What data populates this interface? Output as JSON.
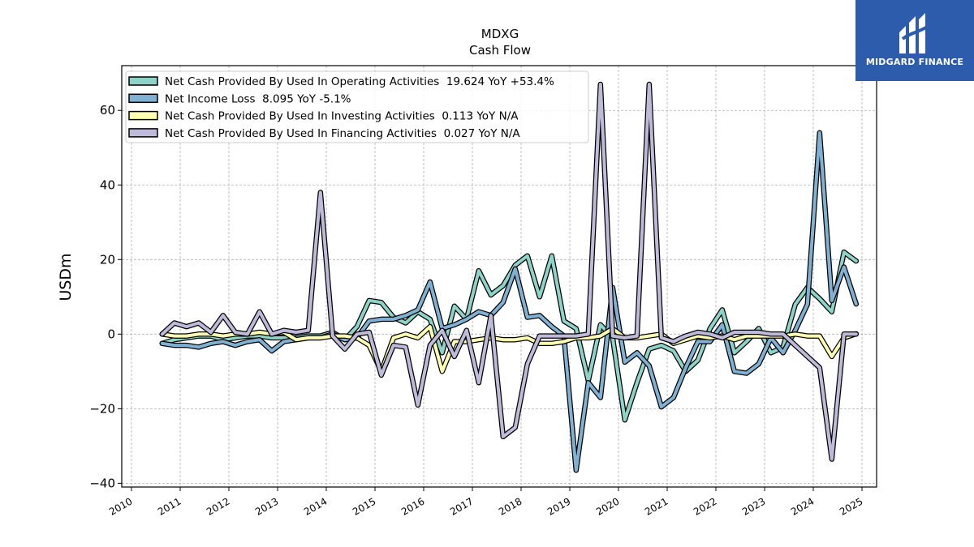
{
  "logo": {
    "text": "MIDGARD FINANCE",
    "color": "#2c5cab"
  },
  "chart_data": {
    "type": "line",
    "title": "MDXG",
    "subtitle": "Cash Flow",
    "xlabel": "",
    "ylabel": "USDm",
    "xlim": [
      2009.8,
      2025.3
    ],
    "ylim": [
      -41,
      72
    ],
    "x_ticks": [
      2010,
      2011,
      2012,
      2013,
      2014,
      2015,
      2016,
      2017,
      2018,
      2019,
      2020,
      2021,
      2022,
      2023,
      2024,
      2025
    ],
    "y_ticks": [
      -40,
      -20,
      0,
      20,
      40,
      60
    ],
    "y_tick_labels": [
      "−40",
      "−20",
      "0",
      "20",
      "40",
      "60"
    ],
    "grid": true,
    "legend_position": "top-left",
    "series": [
      {
        "name": "Net Cash Provided By Used In Operating Activities  19.624 YoY +53.4%",
        "color": "#8dd3c7",
        "points": [
          [
            2010.63,
            -2.5
          ],
          [
            2010.88,
            -1.5
          ],
          [
            2011.13,
            -1
          ],
          [
            2011.38,
            -0.5
          ],
          [
            2011.63,
            -0.5
          ],
          [
            2011.88,
            -1.5
          ],
          [
            2012.13,
            -1
          ],
          [
            2012.38,
            -0.5
          ],
          [
            2012.63,
            -0.5
          ],
          [
            2012.88,
            -1
          ],
          [
            2013.13,
            -1
          ],
          [
            2013.38,
            -1
          ],
          [
            2013.63,
            -0.5
          ],
          [
            2013.88,
            -0.5
          ],
          [
            2014.13,
            0.5
          ],
          [
            2014.38,
            -1.5
          ],
          [
            2014.63,
            2
          ],
          [
            2014.88,
            9
          ],
          [
            2015.13,
            8.5
          ],
          [
            2015.38,
            4.5
          ],
          [
            2015.63,
            3
          ],
          [
            2015.88,
            6
          ],
          [
            2016.13,
            4
          ],
          [
            2016.38,
            -5
          ],
          [
            2016.63,
            7.5
          ],
          [
            2016.88,
            4
          ],
          [
            2017.13,
            17
          ],
          [
            2017.38,
            10.5
          ],
          [
            2017.63,
            13
          ],
          [
            2017.88,
            18.5
          ],
          [
            2018.13,
            21
          ],
          [
            2018.38,
            10
          ],
          [
            2018.63,
            21
          ],
          [
            2018.88,
            3.5
          ],
          [
            2019.13,
            1.5
          ],
          [
            2019.38,
            -12.5
          ],
          [
            2019.63,
            2.5
          ],
          [
            2019.88,
            -1
          ],
          [
            2020.13,
            -23
          ],
          [
            2020.38,
            -13
          ],
          [
            2020.63,
            -4
          ],
          [
            2020.88,
            -3
          ],
          [
            2021.13,
            -4.5
          ],
          [
            2021.38,
            -10
          ],
          [
            2021.63,
            -7
          ],
          [
            2021.88,
            1.5
          ],
          [
            2022.13,
            6.5
          ],
          [
            2022.38,
            -5
          ],
          [
            2022.63,
            -2
          ],
          [
            2022.88,
            1.5
          ],
          [
            2023.13,
            -5
          ],
          [
            2023.38,
            -3.5
          ],
          [
            2023.63,
            8
          ],
          [
            2023.88,
            12.5
          ],
          [
            2024.13,
            9.5
          ],
          [
            2024.38,
            6
          ],
          [
            2024.63,
            22
          ],
          [
            2024.88,
            19.6
          ]
        ]
      },
      {
        "name": "Net Income Loss  8.095 YoY -5.1%",
        "color": "#80b1d3",
        "points": [
          [
            2010.63,
            -2.5
          ],
          [
            2010.88,
            -3
          ],
          [
            2011.13,
            -3
          ],
          [
            2011.38,
            -3.5
          ],
          [
            2011.63,
            -2.5
          ],
          [
            2011.88,
            -2
          ],
          [
            2012.13,
            -3
          ],
          [
            2012.38,
            -2
          ],
          [
            2012.63,
            -1.5
          ],
          [
            2012.88,
            -4.5
          ],
          [
            2013.13,
            -2
          ],
          [
            2013.38,
            -1.5
          ],
          [
            2013.63,
            -1
          ],
          [
            2013.88,
            -1
          ],
          [
            2014.13,
            0
          ],
          [
            2014.38,
            -1.5
          ],
          [
            2014.63,
            -1
          ],
          [
            2014.88,
            3.5
          ],
          [
            2015.13,
            4
          ],
          [
            2015.38,
            4
          ],
          [
            2015.63,
            5
          ],
          [
            2015.88,
            6.5
          ],
          [
            2016.13,
            14
          ],
          [
            2016.38,
            1.5
          ],
          [
            2016.63,
            2.5
          ],
          [
            2016.88,
            4
          ],
          [
            2017.13,
            6
          ],
          [
            2017.38,
            5
          ],
          [
            2017.63,
            8.5
          ],
          [
            2017.88,
            17.5
          ],
          [
            2018.13,
            4.5
          ],
          [
            2018.38,
            5
          ],
          [
            2018.63,
            2
          ],
          [
            2018.88,
            -0.5
          ],
          [
            2019.13,
            -36.5
          ],
          [
            2019.38,
            -13
          ],
          [
            2019.63,
            -17
          ],
          [
            2019.88,
            12.5
          ],
          [
            2020.13,
            -7.5
          ],
          [
            2020.38,
            -5
          ],
          [
            2020.63,
            -8.5
          ],
          [
            2020.88,
            -19.5
          ],
          [
            2021.13,
            -17
          ],
          [
            2021.38,
            -9
          ],
          [
            2021.63,
            -2
          ],
          [
            2021.88,
            -2
          ],
          [
            2022.13,
            2.5
          ],
          [
            2022.38,
            -10
          ],
          [
            2022.63,
            -10.5
          ],
          [
            2022.88,
            -8
          ],
          [
            2023.13,
            -1
          ],
          [
            2023.38,
            -5
          ],
          [
            2023.63,
            1
          ],
          [
            2023.88,
            8
          ],
          [
            2024.13,
            54
          ],
          [
            2024.38,
            9
          ],
          [
            2024.63,
            18
          ],
          [
            2024.88,
            8.1
          ]
        ]
      },
      {
        "name": "Net Cash Provided By Used In Investing Activities  0.113 YoY N/A",
        "color": "#ffffb3",
        "points": [
          [
            2010.63,
            0
          ],
          [
            2010.88,
            -0.5
          ],
          [
            2011.13,
            -0.5
          ],
          [
            2011.38,
            0
          ],
          [
            2011.63,
            0
          ],
          [
            2011.88,
            -0.5
          ],
          [
            2012.13,
            0
          ],
          [
            2012.38,
            0
          ],
          [
            2012.63,
            0.5
          ],
          [
            2012.88,
            0
          ],
          [
            2013.13,
            0.5
          ],
          [
            2013.38,
            -1.5
          ],
          [
            2013.63,
            -1
          ],
          [
            2013.88,
            -1
          ],
          [
            2014.13,
            -0.5
          ],
          [
            2014.38,
            -0.5
          ],
          [
            2014.63,
            -1
          ],
          [
            2014.88,
            -3
          ],
          [
            2015.13,
            -10
          ],
          [
            2015.38,
            -1
          ],
          [
            2015.63,
            0
          ],
          [
            2015.88,
            -1
          ],
          [
            2016.13,
            2
          ],
          [
            2016.38,
            -10
          ],
          [
            2016.63,
            -2
          ],
          [
            2016.88,
            -2
          ],
          [
            2017.13,
            -1.5
          ],
          [
            2017.38,
            -1
          ],
          [
            2017.63,
            -1.5
          ],
          [
            2017.88,
            -1.5
          ],
          [
            2018.13,
            -1
          ],
          [
            2018.38,
            -2.5
          ],
          [
            2018.63,
            -2.5
          ],
          [
            2018.88,
            -2
          ],
          [
            2019.13,
            -1
          ],
          [
            2019.38,
            -1
          ],
          [
            2019.63,
            -0.5
          ],
          [
            2019.88,
            1.5
          ],
          [
            2020.13,
            -1
          ],
          [
            2020.38,
            -1
          ],
          [
            2020.63,
            -0.5
          ],
          [
            2020.88,
            0
          ],
          [
            2021.13,
            -2.5
          ],
          [
            2021.38,
            -1.5
          ],
          [
            2021.63,
            -0.5
          ],
          [
            2021.88,
            -1
          ],
          [
            2022.13,
            -0.5
          ],
          [
            2022.38,
            -1.5
          ],
          [
            2022.63,
            -0.5
          ],
          [
            2022.88,
            -0.5
          ],
          [
            2023.13,
            -0.5
          ],
          [
            2023.38,
            -0.5
          ],
          [
            2023.63,
            0
          ],
          [
            2023.88,
            -0.5
          ],
          [
            2024.13,
            -0.5
          ],
          [
            2024.38,
            -6
          ],
          [
            2024.63,
            -1
          ],
          [
            2024.88,
            0.1
          ]
        ]
      },
      {
        "name": "Net Cash Provided By Used In Financing Activities  0.027 YoY N/A",
        "color": "#bebada",
        "points": [
          [
            2010.63,
            0
          ],
          [
            2010.88,
            3
          ],
          [
            2011.13,
            2
          ],
          [
            2011.38,
            3
          ],
          [
            2011.63,
            0.5
          ],
          [
            2011.88,
            5
          ],
          [
            2012.13,
            0.5
          ],
          [
            2012.38,
            0
          ],
          [
            2012.63,
            6
          ],
          [
            2012.88,
            0
          ],
          [
            2013.13,
            1
          ],
          [
            2013.38,
            0.5
          ],
          [
            2013.63,
            1
          ],
          [
            2013.88,
            38
          ],
          [
            2014.13,
            -0.5
          ],
          [
            2014.38,
            -4
          ],
          [
            2014.63,
            0
          ],
          [
            2014.88,
            0.5
          ],
          [
            2015.13,
            -11
          ],
          [
            2015.38,
            -3
          ],
          [
            2015.63,
            -3.5
          ],
          [
            2015.88,
            -19
          ],
          [
            2016.13,
            -3
          ],
          [
            2016.38,
            1
          ],
          [
            2016.63,
            -6
          ],
          [
            2016.88,
            1
          ],
          [
            2017.13,
            -13
          ],
          [
            2017.38,
            5
          ],
          [
            2017.63,
            -27.5
          ],
          [
            2017.88,
            -25
          ],
          [
            2018.13,
            -8
          ],
          [
            2018.38,
            -0.5
          ],
          [
            2018.63,
            -0.5
          ],
          [
            2018.88,
            -0.5
          ],
          [
            2019.13,
            -0.5
          ],
          [
            2019.38,
            0
          ],
          [
            2019.63,
            67
          ],
          [
            2019.88,
            -0.5
          ],
          [
            2020.13,
            -1
          ],
          [
            2020.38,
            -0.5
          ],
          [
            2020.63,
            67
          ],
          [
            2020.88,
            -1
          ],
          [
            2021.13,
            -2
          ],
          [
            2021.38,
            -0.5
          ],
          [
            2021.63,
            0.5
          ],
          [
            2021.88,
            0
          ],
          [
            2022.13,
            -1
          ],
          [
            2022.38,
            0.5
          ],
          [
            2022.63,
            0.5
          ],
          [
            2022.88,
            0.5
          ],
          [
            2023.13,
            0
          ],
          [
            2023.38,
            0
          ],
          [
            2023.63,
            -3
          ],
          [
            2023.88,
            -6
          ],
          [
            2024.13,
            -9
          ],
          [
            2024.38,
            -33.5
          ],
          [
            2024.63,
            0
          ],
          [
            2024.88,
            0
          ]
        ]
      }
    ]
  }
}
